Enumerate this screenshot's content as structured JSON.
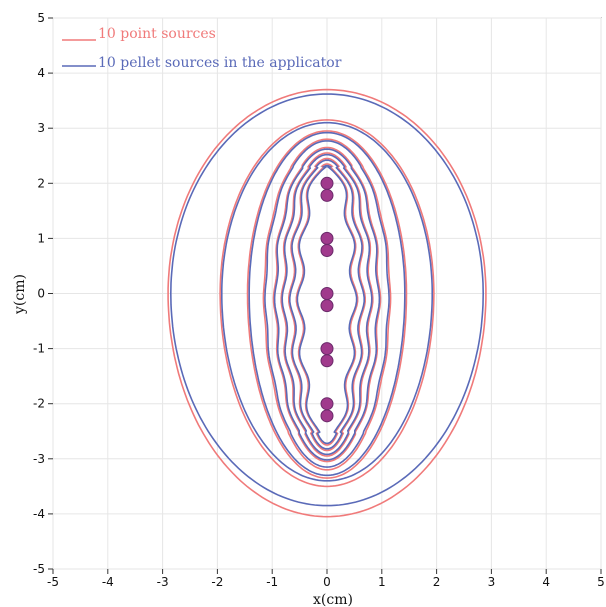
{
  "chart_data": {
    "type": "line",
    "title": "",
    "xlabel": "x(cm)",
    "ylabel": "y(cm)",
    "xlim": [
      -5,
      5
    ],
    "ylim": [
      -5,
      5
    ],
    "xticks": [
      -5,
      -4,
      -3,
      -2,
      -1,
      0,
      1,
      2,
      3,
      4,
      5
    ],
    "yticks": [
      -5,
      -4,
      -3,
      -2,
      -1,
      0,
      1,
      2,
      3,
      4,
      5
    ],
    "grid": true,
    "legend_position": "top-left",
    "colors": {
      "point_sources": "#f07a7a",
      "pellet_sources": "#5a6ab8",
      "source_marker_fill": "#a03a8c",
      "source_marker_stroke": "#6a2a6a",
      "grid": "#e6e6e6",
      "axis": "#333333"
    },
    "series": [
      {
        "name": "10 point sources",
        "color": "#f07a7a",
        "contours": [
          {
            "hx": 2.9,
            "y_top": 3.7,
            "y_bottom": -4.05
          },
          {
            "hx": 1.95,
            "y_top": 3.15,
            "y_bottom": -3.5
          },
          {
            "hx": 1.45,
            "y_top": 2.95,
            "y_bottom": -3.35
          },
          {
            "hx": 1.15,
            "y_top": 2.8,
            "y_bottom": -3.2
          },
          {
            "hx": 0.95,
            "y_top": 2.65,
            "y_bottom": -3.05
          },
          {
            "hx": 0.8,
            "y_top": 2.55,
            "y_bottom": -2.95
          },
          {
            "hx": 0.65,
            "y_top": 2.45,
            "y_bottom": -2.85
          },
          {
            "hx": 0.5,
            "y_top": 2.35,
            "y_bottom": -2.75
          }
        ]
      },
      {
        "name": "10 pellet sources in the applicator",
        "color": "#5a6ab8",
        "contours": [
          {
            "hx": 2.85,
            "y_top": 3.62,
            "y_bottom": -3.85
          },
          {
            "hx": 1.92,
            "y_top": 3.1,
            "y_bottom": -3.4
          },
          {
            "hx": 1.42,
            "y_top": 2.92,
            "y_bottom": -3.3
          },
          {
            "hx": 1.12,
            "y_top": 2.77,
            "y_bottom": -3.15
          },
          {
            "hx": 0.93,
            "y_top": 2.62,
            "y_bottom": -3.02
          },
          {
            "hx": 0.78,
            "y_top": 2.52,
            "y_bottom": -2.92
          },
          {
            "hx": 0.63,
            "y_top": 2.42,
            "y_bottom": -2.82
          },
          {
            "hx": 0.48,
            "y_top": 2.32,
            "y_bottom": -2.72
          }
        ]
      }
    ],
    "sources": {
      "x": [
        0,
        0,
        0,
        0,
        0,
        0,
        0,
        0,
        0,
        0
      ],
      "y": [
        2.0,
        1.78,
        1.0,
        0.78,
        0.0,
        -0.22,
        -1.0,
        -1.22,
        -2.0,
        -2.22
      ]
    }
  }
}
